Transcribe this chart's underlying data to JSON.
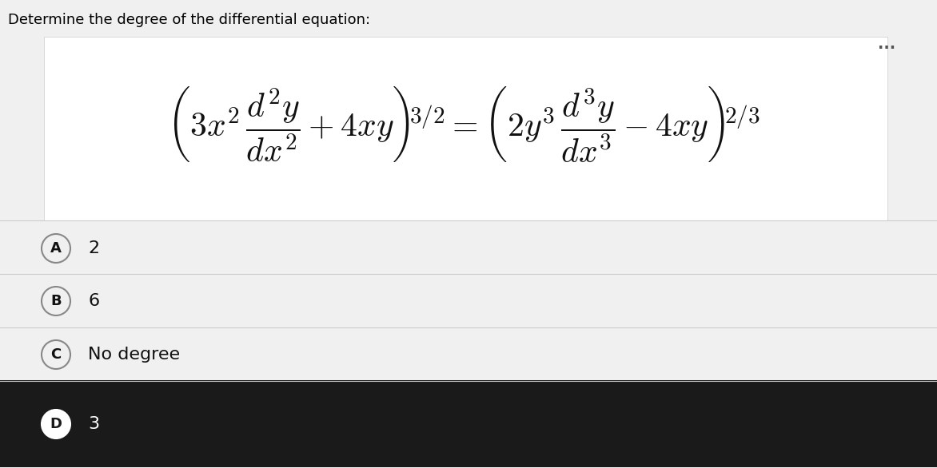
{
  "title": "Determine the degree of the differential equation:",
  "title_fontsize": 13,
  "title_color": "#000000",
  "bg_color": "#f0f0f0",
  "white_box_color": "#ffffff",
  "dark_bar_color": "#1a1a1a",
  "options": [
    {
      "label": "A",
      "text": "2",
      "selected": false
    },
    {
      "label": "B",
      "text": "6",
      "selected": false
    },
    {
      "label": "C",
      "text": "No degree",
      "selected": false
    },
    {
      "label": "D",
      "text": "3",
      "selected": true
    }
  ],
  "equation_left": "\\left(3x^2\\,\\frac{d^2y}{dx^2}+4xy\\right)^{3/2}",
  "equation_right": "=\\left(2y^3\\,\\frac{d^3y}{dx^3}-4xy\\right)^{2/3}",
  "dots": "...",
  "figwidth": 11.72,
  "figheight": 5.86,
  "dpi": 100
}
